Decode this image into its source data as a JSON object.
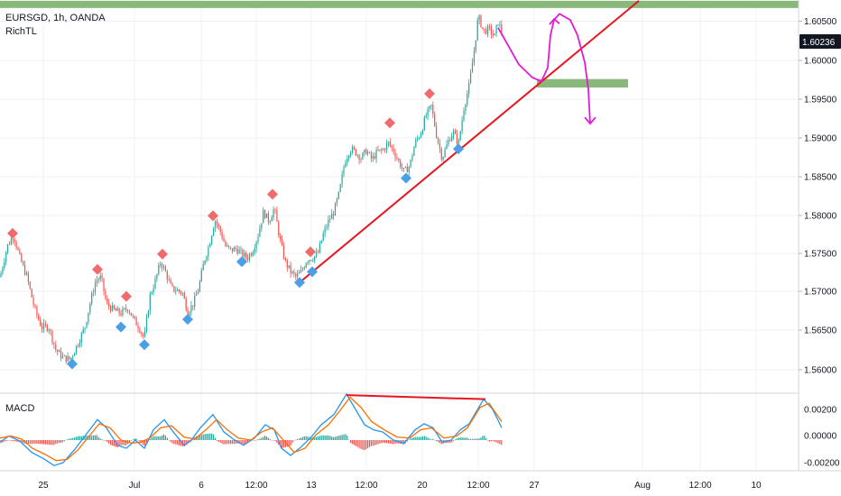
{
  "header": {
    "symbol_line": "EURSGD, 1h, OANDA",
    "indicator": "RichTL",
    "macd_label": "MACD"
  },
  "colors": {
    "up_candle": "#26a69a",
    "down_candle": "#ef5350",
    "trendline": "#e8141f",
    "zone": "#7fb270",
    "arrow": "#e31bd6",
    "macd_line": "#2196f3",
    "signal_line": "#ff6d00",
    "pivot_high": "#f06b6b",
    "pivot_low": "#4a9fe8",
    "price_badge": "#131722"
  },
  "chart_data": {
    "type": "candlestick",
    "title": "EURSGD, 1h, OANDA",
    "price_axis": {
      "ylim": [
        1.5555,
        1.6066
      ],
      "ticks": [
        "1.60500",
        "1.60000",
        "1.59500",
        "1.59000",
        "1.58500",
        "1.58000",
        "1.57500",
        "1.57000",
        "1.56500",
        "1.56000"
      ],
      "current_price": "1.60236"
    },
    "time_axis": {
      "ticks": [
        "25",
        "Jul",
        "6",
        "12:00",
        "13",
        "12:00",
        "20",
        "12:00",
        "27",
        "Aug",
        "12:00",
        "10"
      ]
    },
    "close_path": [
      [
        0,
        1.5705
      ],
      [
        8,
        1.5745
      ],
      [
        15,
        1.576
      ],
      [
        22,
        1.573
      ],
      [
        30,
        1.5705
      ],
      [
        38,
        1.5665
      ],
      [
        46,
        1.564
      ],
      [
        54,
        1.564
      ],
      [
        62,
        1.561
      ],
      [
        70,
        1.56
      ],
      [
        78,
        1.5598
      ],
      [
        86,
        1.5618
      ],
      [
        94,
        1.564
      ],
      [
        100,
        1.5672
      ],
      [
        106,
        1.57
      ],
      [
        112,
        1.5705
      ],
      [
        118,
        1.567
      ],
      [
        126,
        1.5662
      ],
      [
        134,
        1.5658
      ],
      [
        142,
        1.5665
      ],
      [
        148,
        1.565
      ],
      [
        154,
        1.564
      ],
      [
        160,
        1.5625
      ],
      [
        166,
        1.568
      ],
      [
        172,
        1.57
      ],
      [
        178,
        1.5725
      ],
      [
        184,
        1.571
      ],
      [
        190,
        1.569
      ],
      [
        196,
        1.5688
      ],
      [
        202,
        1.5685
      ],
      [
        208,
        1.566
      ],
      [
        214,
        1.567
      ],
      [
        220,
        1.569
      ],
      [
        226,
        1.5725
      ],
      [
        232,
        1.5748
      ],
      [
        238,
        1.578
      ],
      [
        244,
        1.5765
      ],
      [
        250,
        1.5745
      ],
      [
        256,
        1.574
      ],
      [
        262,
        1.5742
      ],
      [
        268,
        1.5735
      ],
      [
        274,
        1.573
      ],
      [
        280,
        1.574
      ],
      [
        286,
        1.576
      ],
      [
        292,
        1.579
      ],
      [
        298,
        1.5778
      ],
      [
        304,
        1.5795
      ],
      [
        310,
        1.5755
      ],
      [
        316,
        1.5725
      ],
      [
        322,
        1.5712
      ],
      [
        328,
        1.5705
      ],
      [
        334,
        1.5712
      ],
      [
        340,
        1.5728
      ],
      [
        346,
        1.573
      ],
      [
        352,
        1.5735
      ],
      [
        358,
        1.576
      ],
      [
        364,
        1.5778
      ],
      [
        370,
        1.579
      ],
      [
        376,
        1.5815
      ],
      [
        382,
        1.5855
      ],
      [
        388,
        1.5872
      ],
      [
        394,
        1.5868
      ],
      [
        400,
        1.586
      ],
      [
        406,
        1.587
      ],
      [
        412,
        1.5858
      ],
      [
        418,
        1.5868
      ],
      [
        424,
        1.587
      ],
      [
        430,
        1.588
      ],
      [
        436,
        1.587
      ],
      [
        442,
        1.5855
      ],
      [
        448,
        1.5842
      ],
      [
        454,
        1.585
      ],
      [
        460,
        1.588
      ],
      [
        466,
        1.5892
      ],
      [
        472,
        1.5915
      ],
      [
        478,
        1.5928
      ],
      [
        484,
        1.5888
      ],
      [
        490,
        1.586
      ],
      [
        496,
        1.588
      ],
      [
        502,
        1.5895
      ],
      [
        508,
        1.5878
      ],
      [
        514,
        1.5925
      ],
      [
        520,
        1.5955
      ],
      [
        526,
        1.6005
      ],
      [
        530,
        1.6045
      ],
      [
        536,
        1.6025
      ],
      [
        542,
        1.6028
      ],
      [
        548,
        1.6018
      ],
      [
        552,
        1.6038
      ],
      [
        556,
        1.6024
      ]
    ],
    "pivot_highs": [
      [
        14,
        1.5762
      ],
      [
        108,
        1.5715
      ],
      [
        140,
        1.568
      ],
      [
        180,
        1.5735
      ],
      [
        236,
        1.5785
      ],
      [
        302,
        1.5813
      ],
      [
        344,
        1.5738
      ],
      [
        432,
        1.5906
      ],
      [
        476,
        1.5944
      ]
    ],
    "pivot_lows": [
      [
        80,
        1.5592
      ],
      [
        134,
        1.564
      ],
      [
        160,
        1.5617
      ],
      [
        208,
        1.565
      ],
      [
        268,
        1.5725
      ],
      [
        332,
        1.5698
      ],
      [
        346,
        1.5712
      ],
      [
        450,
        1.5834
      ],
      [
        508,
        1.5872
      ]
    ],
    "trendline": [
      [
        332,
        1.5698
      ],
      [
        708,
        1.6065
      ]
    ],
    "zones": [
      [
        0,
        885,
        1.6065,
        1.6056
      ],
      [
        595,
        696,
        1.5963,
        1.5952
      ]
    ],
    "arrow_path": [
      [
        552,
        1.603
      ],
      [
        564,
        1.6005
      ],
      [
        575,
        1.5982
      ],
      [
        590,
        1.5965
      ],
      [
        600,
        1.596
      ],
      [
        607,
        1.5978
      ],
      [
        610,
        1.602
      ],
      [
        614,
        1.604
      ],
      [
        620,
        1.6048
      ],
      [
        632,
        1.604
      ],
      [
        640,
        1.602
      ],
      [
        648,
        1.5985
      ],
      [
        652,
        1.595
      ],
      [
        654,
        1.5905
      ]
    ],
    "macd": {
      "ylim": [
        -0.003,
        0.0045
      ],
      "ticks": [
        "0.00200",
        "0.00000",
        "-0.00200"
      ],
      "macd_line": [
        [
          0,
          -0.0002
        ],
        [
          10,
          0.0004
        ],
        [
          22,
          -0.0001
        ],
        [
          35,
          -0.0012
        ],
        [
          48,
          -0.0018
        ],
        [
          60,
          -0.0025
        ],
        [
          70,
          -0.0022
        ],
        [
          82,
          -0.001
        ],
        [
          95,
          0.0005
        ],
        [
          108,
          0.002
        ],
        [
          118,
          0.0012
        ],
        [
          130,
          -0.0005
        ],
        [
          140,
          -0.0008
        ],
        [
          150,
          0.0
        ],
        [
          160,
          -0.0008
        ],
        [
          170,
          0.001
        ],
        [
          182,
          0.002
        ],
        [
          192,
          0.0008
        ],
        [
          204,
          -0.0005
        ],
        [
          212,
          0.0
        ],
        [
          222,
          0.0012
        ],
        [
          236,
          0.0025
        ],
        [
          248,
          0.0008
        ],
        [
          260,
          0.0
        ],
        [
          270,
          -0.0005
        ],
        [
          282,
          0.0002
        ],
        [
          294,
          0.0015
        ],
        [
          304,
          0.001
        ],
        [
          312,
          -0.0008
        ],
        [
          322,
          -0.0015
        ],
        [
          332,
          -0.0008
        ],
        [
          344,
          0.0002
        ],
        [
          356,
          0.0015
        ],
        [
          370,
          0.0025
        ],
        [
          384,
          0.0045
        ],
        [
          394,
          0.003
        ],
        [
          404,
          0.0015
        ],
        [
          414,
          0.001
        ],
        [
          424,
          0.0008
        ],
        [
          436,
          0.0
        ],
        [
          448,
          -0.0003
        ],
        [
          460,
          0.001
        ],
        [
          470,
          0.0016
        ],
        [
          480,
          0.0012
        ],
        [
          490,
          -0.0002
        ],
        [
          500,
          0.0
        ],
        [
          510,
          0.001
        ],
        [
          520,
          0.0016
        ],
        [
          528,
          0.0028
        ],
        [
          536,
          0.004
        ],
        [
          546,
          0.003
        ],
        [
          556,
          0.0012
        ]
      ],
      "signal_line": [
        [
          0,
          0.0002
        ],
        [
          12,
          0.0004
        ],
        [
          24,
          0.0001
        ],
        [
          36,
          -0.0008
        ],
        [
          50,
          -0.0014
        ],
        [
          62,
          -0.002
        ],
        [
          74,
          -0.0019
        ],
        [
          86,
          -0.001
        ],
        [
          98,
          0.0003
        ],
        [
          110,
          0.0016
        ],
        [
          122,
          0.0012
        ],
        [
          134,
          0.0
        ],
        [
          146,
          -0.0003
        ],
        [
          156,
          -0.0002
        ],
        [
          166,
          0.0002
        ],
        [
          178,
          0.0012
        ],
        [
          190,
          0.0014
        ],
        [
          204,
          0.0003
        ],
        [
          216,
          0.0001
        ],
        [
          228,
          0.001
        ],
        [
          240,
          0.002
        ],
        [
          252,
          0.001
        ],
        [
          264,
          0.0002
        ],
        [
          278,
          0.0
        ],
        [
          290,
          0.0008
        ],
        [
          302,
          0.0012
        ],
        [
          314,
          0.0
        ],
        [
          326,
          -0.0012
        ],
        [
          338,
          -0.0008
        ],
        [
          350,
          0.0005
        ],
        [
          364,
          0.0015
        ],
        [
          376,
          0.0028
        ],
        [
          388,
          0.0042
        ],
        [
          400,
          0.0032
        ],
        [
          412,
          0.0018
        ],
        [
          426,
          0.001
        ],
        [
          440,
          0.0003
        ],
        [
          454,
          0.0002
        ],
        [
          466,
          0.001
        ],
        [
          478,
          0.0012
        ],
        [
          492,
          0.0002
        ],
        [
          506,
          0.0004
        ],
        [
          518,
          0.0012
        ],
        [
          532,
          0.0032
        ],
        [
          542,
          0.0036
        ],
        [
          556,
          0.0018
        ]
      ],
      "divergence_line": [
        [
          384,
          0.0044
        ],
        [
          538,
          0.004
        ]
      ]
    }
  }
}
